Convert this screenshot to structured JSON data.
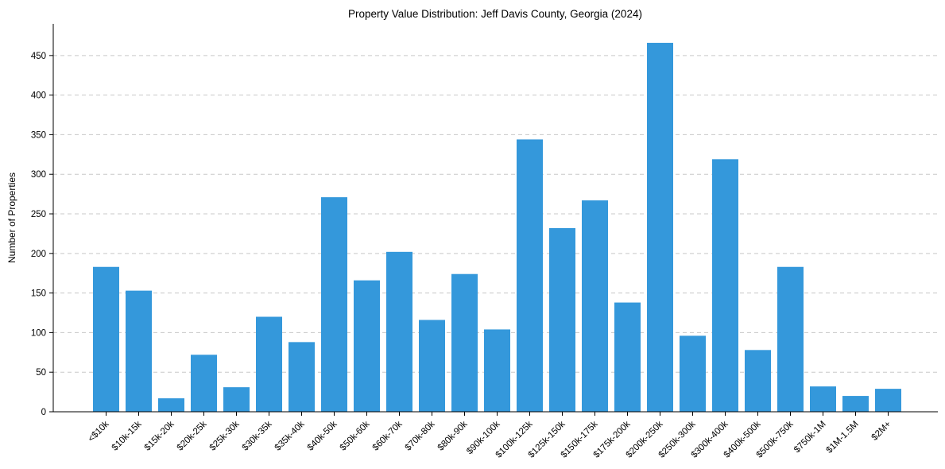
{
  "chart_data": {
    "type": "bar",
    "title": "Property Value Distribution: Jeff Davis County, Georgia (2024)",
    "xlabel": "",
    "ylabel": "Number of Properties",
    "categories": [
      "<$10k",
      "$10k-15k",
      "$15k-20k",
      "$20k-25k",
      "$25k-30k",
      "$30k-35k",
      "$35k-40k",
      "$40k-50k",
      "$50k-60k",
      "$60k-70k",
      "$70k-80k",
      "$80k-90k",
      "$90k-100k",
      "$100k-125k",
      "$125k-150k",
      "$150k-175k",
      "$175k-200k",
      "$200k-250k",
      "$250k-300k",
      "$300k-400k",
      "$400k-500k",
      "$500k-750k",
      "$750k-1M",
      "$1M-1.5M",
      "$2M+"
    ],
    "values": [
      183,
      153,
      17,
      72,
      31,
      120,
      88,
      271,
      166,
      202,
      116,
      174,
      104,
      344,
      232,
      267,
      138,
      466,
      96,
      319,
      78,
      183,
      32,
      20,
      29
    ],
    "ylim": [
      0,
      490
    ],
    "yticks": [
      0,
      50,
      100,
      150,
      200,
      250,
      300,
      350,
      400,
      450
    ],
    "grid": "y",
    "bar_color": "#3498db"
  }
}
